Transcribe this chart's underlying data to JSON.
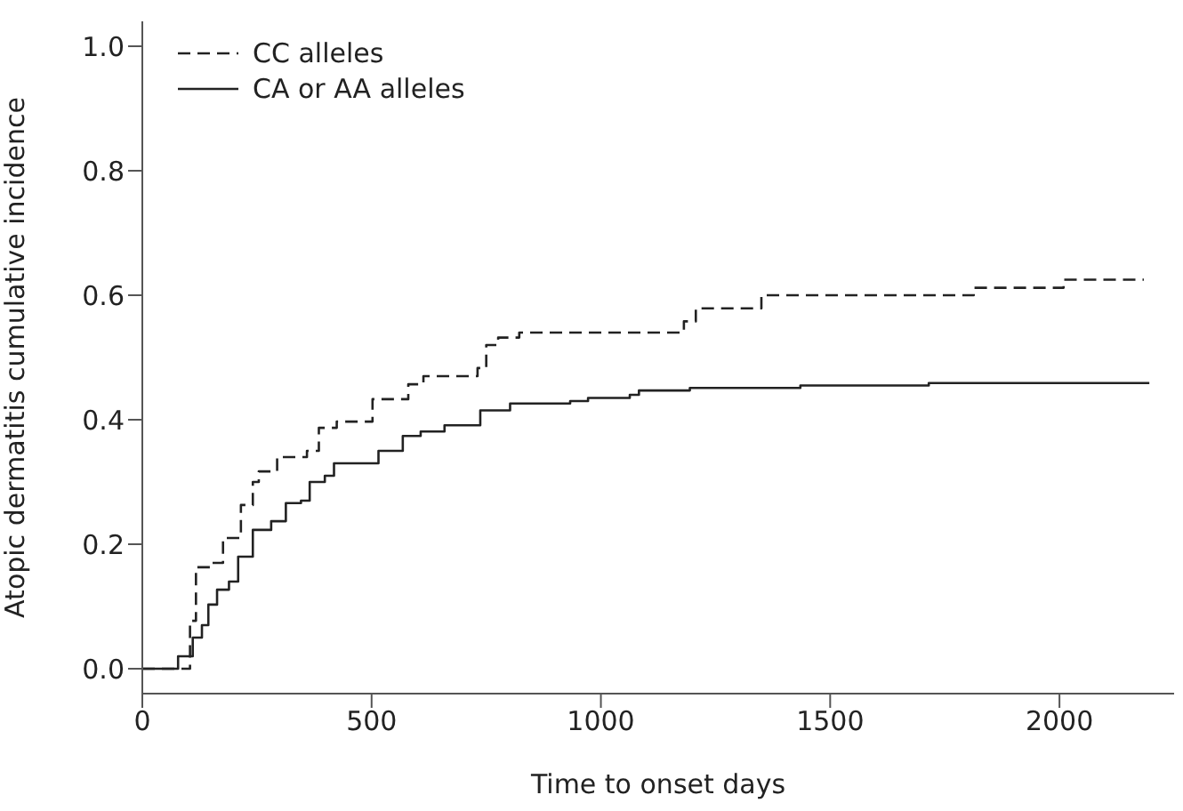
{
  "chart_data": {
    "type": "step",
    "xlabel": "Time to onset days",
    "ylabel": "Atopic dermatitis cumulative incidence",
    "xlim": [
      0,
      2250
    ],
    "xticks": [
      0,
      500,
      1000,
      1500,
      2000
    ],
    "ylim": [
      -0.04,
      1.04
    ],
    "yticks": [
      {
        "value": 0,
        "label": "0.0"
      },
      {
        "value": 0.2,
        "label": "0.2"
      },
      {
        "value": 0.4,
        "label": "0.4"
      },
      {
        "value": 0.6,
        "label": "0.6"
      },
      {
        "value": 0.8,
        "label": "0.8"
      },
      {
        "value": 1,
        "label": "1.0"
      }
    ],
    "legend": "top left",
    "grid": false,
    "marker": "none",
    "series": [
      {
        "name": "CC alleles",
        "color": "#222222",
        "line_style": "dashed",
        "x": [
          0,
          78,
          104,
          117,
          149,
          176,
          215,
          241,
          254,
          294,
          345,
          359,
          385,
          424,
          496,
          502,
          574,
          580,
          613,
          731,
          750,
          776,
          822,
          1115,
          1181,
          1207,
          1318,
          1350,
          1813,
          2009,
          2184
        ],
        "values": [
          0,
          0,
          0.077,
          0.163,
          0.17,
          0.21,
          0.263,
          0.3,
          0.317,
          0.34,
          0.34,
          0.35,
          0.387,
          0.397,
          0.397,
          0.433,
          0.433,
          0.457,
          0.47,
          0.483,
          0.52,
          0.532,
          0.54,
          0.54,
          0.558,
          0.579,
          0.579,
          0.6,
          0.612,
          0.625,
          0.625
        ]
      },
      {
        "name": "CA or AA alleles",
        "color": "#222222",
        "line_style": "solid",
        "x": [
          0,
          78,
          110,
          130,
          144,
          163,
          189,
          209,
          241,
          281,
          313,
          346,
          365,
          398,
          418,
          489,
          515,
          568,
          607,
          659,
          724,
          737,
          802,
          933,
          972,
          1063,
          1083,
          1194,
          1435,
          1715,
          2196
        ],
        "values": [
          0,
          0.02,
          0.05,
          0.07,
          0.103,
          0.127,
          0.14,
          0.18,
          0.223,
          0.237,
          0.266,
          0.27,
          0.3,
          0.31,
          0.33,
          0.33,
          0.35,
          0.374,
          0.381,
          0.391,
          0.391,
          0.415,
          0.426,
          0.43,
          0.435,
          0.44,
          0.447,
          0.451,
          0.455,
          0.459,
          0.459
        ]
      }
    ]
  }
}
